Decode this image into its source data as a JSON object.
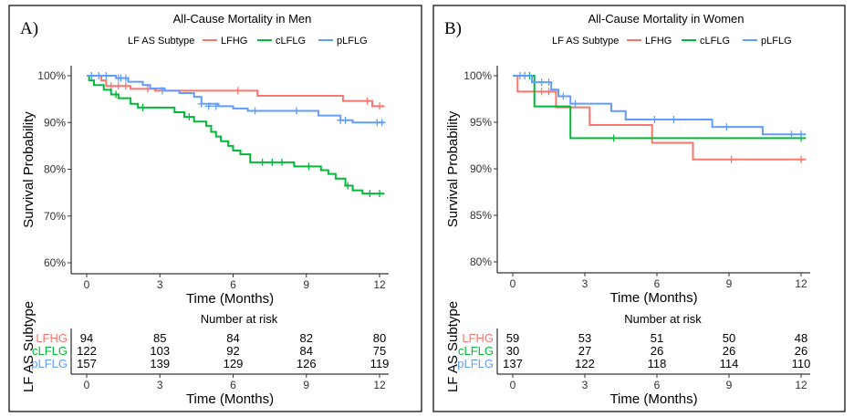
{
  "chart_data": [
    {
      "type": "line",
      "panel": "A)",
      "title": "All-Cause Mortality in Men",
      "legend_title": "LF AS Subtype",
      "xlabel": "Time (Months)",
      "ylabel": "Survival Probability",
      "x_ticks": [
        0,
        3,
        6,
        9,
        12
      ],
      "y_ticks": [
        0.6,
        0.7,
        0.8,
        0.9,
        1.0
      ],
      "y_tick_labels": [
        "60%",
        "70%",
        "80%",
        "90%",
        "100%"
      ],
      "xlim": [
        0,
        12.3
      ],
      "ylim": [
        0.59,
        1.005
      ],
      "legend_position": "top",
      "series": [
        {
          "name": "LFHG",
          "color": "#F8766D",
          "steps": [
            [
              0,
              1.0
            ],
            [
              0.6,
              0.99
            ],
            [
              0.8,
              0.978
            ],
            [
              1.8,
              0.972
            ],
            [
              2.8,
              0.968
            ],
            [
              7,
              0.957
            ],
            [
              10.5,
              0.946
            ],
            [
              11.7,
              0.935
            ],
            [
              12.2,
              0.935
            ]
          ],
          "censors": [
            [
              1.0,
              0.978
            ],
            [
              1.3,
              0.978
            ],
            [
              1.6,
              0.978
            ],
            [
              2.5,
              0.972
            ],
            [
              6.2,
              0.968
            ],
            [
              11.5,
              0.946
            ],
            [
              12.0,
              0.935
            ]
          ]
        },
        {
          "name": "cLFLG",
          "color": "#00BA38",
          "steps": [
            [
              0,
              1.0
            ],
            [
              0.1,
              0.99
            ],
            [
              0.3,
              0.98
            ],
            [
              0.7,
              0.97
            ],
            [
              1,
              0.96
            ],
            [
              1.3,
              0.952
            ],
            [
              1.8,
              0.94
            ],
            [
              2.1,
              0.932
            ],
            [
              3.6,
              0.922
            ],
            [
              4,
              0.912
            ],
            [
              4.4,
              0.902
            ],
            [
              4.9,
              0.893
            ],
            [
              5.1,
              0.88
            ],
            [
              5.3,
              0.87
            ],
            [
              5.5,
              0.86
            ],
            [
              5.8,
              0.85
            ],
            [
              6,
              0.84
            ],
            [
              6.3,
              0.832
            ],
            [
              6.7,
              0.815
            ],
            [
              8.5,
              0.806
            ],
            [
              9.6,
              0.798
            ],
            [
              9.9,
              0.79
            ],
            [
              10.2,
              0.78
            ],
            [
              10.6,
              0.765
            ],
            [
              10.9,
              0.755
            ],
            [
              11.3,
              0.748
            ],
            [
              12.2,
              0.748
            ]
          ],
          "censors": [
            [
              1.2,
              0.96
            ],
            [
              2.3,
              0.932
            ],
            [
              4.2,
              0.912
            ],
            [
              7.2,
              0.815
            ],
            [
              7.6,
              0.815
            ],
            [
              8,
              0.815
            ],
            [
              9.1,
              0.806
            ],
            [
              10.7,
              0.765
            ],
            [
              11.6,
              0.748
            ],
            [
              12.0,
              0.748
            ]
          ]
        },
        {
          "name": "pLFLG",
          "color": "#619CFF",
          "steps": [
            [
              0,
              1.0
            ],
            [
              1.2,
              0.995
            ],
            [
              1.7,
              0.987
            ],
            [
              2.3,
              0.98
            ],
            [
              2.6,
              0.973
            ],
            [
              3.2,
              0.968
            ],
            [
              3.8,
              0.963
            ],
            [
              4.4,
              0.955
            ],
            [
              4.7,
              0.94
            ],
            [
              5.4,
              0.935
            ],
            [
              6,
              0.93
            ],
            [
              6.6,
              0.925
            ],
            [
              9.5,
              0.915
            ],
            [
              10.4,
              0.905
            ],
            [
              10.9,
              0.9
            ],
            [
              12.2,
              0.9
            ]
          ],
          "censors": [
            [
              0.2,
              1.0
            ],
            [
              0.5,
              1.0
            ],
            [
              0.8,
              1.0
            ],
            [
              1.3,
              0.995
            ],
            [
              1.4,
              0.995
            ],
            [
              1.6,
              0.995
            ],
            [
              3.1,
              0.968
            ],
            [
              4.7,
              0.94
            ],
            [
              5.0,
              0.935
            ],
            [
              5.3,
              0.935
            ],
            [
              6.9,
              0.925
            ],
            [
              8.6,
              0.925
            ],
            [
              10.4,
              0.905
            ],
            [
              10.6,
              0.905
            ],
            [
              11.9,
              0.9
            ],
            [
              12.1,
              0.9
            ]
          ]
        }
      ],
      "risk_table": {
        "title": "Number at risk",
        "ylabel": "LF AS Subtype",
        "xlabel": "Time (Months)",
        "rows": [
          {
            "name": "LFHG",
            "values": [
              94,
              85,
              84,
              82,
              80
            ]
          },
          {
            "name": "cLFLG",
            "values": [
              122,
              103,
              92,
              84,
              75
            ]
          },
          {
            "name": "pLFLG",
            "values": [
              157,
              139,
              129,
              126,
              119
            ]
          }
        ]
      }
    },
    {
      "type": "line",
      "panel": "B)",
      "title": "All-Cause Mortality in Women",
      "legend_title": "LF AS Subtype",
      "xlabel": "Time (Months)",
      "ylabel": "Survival Probability",
      "x_ticks": [
        0,
        3,
        6,
        9,
        12
      ],
      "y_ticks": [
        0.8,
        0.85,
        0.9,
        0.95,
        1.0
      ],
      "y_tick_labels": [
        "80%",
        "85%",
        "90%",
        "95%",
        "100%"
      ],
      "xlim": [
        0,
        12.3
      ],
      "ylim": [
        0.795,
        1.002
      ],
      "legend_position": "top",
      "series": [
        {
          "name": "LFHG",
          "color": "#F8766D",
          "steps": [
            [
              0,
              1.0
            ],
            [
              0.2,
              0.983
            ],
            [
              1.8,
              0.966
            ],
            [
              3.2,
              0.947
            ],
            [
              5.8,
              0.928
            ],
            [
              7.5,
              0.91
            ],
            [
              12.2,
              0.91
            ]
          ],
          "censors": [
            [
              1.2,
              0.983
            ],
            [
              1.5,
              0.983
            ],
            [
              9.1,
              0.91
            ],
            [
              12.0,
              0.91
            ]
          ]
        },
        {
          "name": "cLFLG",
          "color": "#00BA38",
          "steps": [
            [
              0,
              1.0
            ],
            [
              0.9,
              0.967
            ],
            [
              2.4,
              0.933
            ],
            [
              12.2,
              0.933
            ]
          ],
          "censors": [
            [
              0.7,
              1.0
            ],
            [
              4.2,
              0.933
            ],
            [
              12.0,
              0.933
            ]
          ]
        },
        {
          "name": "pLFLG",
          "color": "#619CFF",
          "steps": [
            [
              0,
              1.0
            ],
            [
              0.8,
              0.993
            ],
            [
              1.6,
              0.985
            ],
            [
              1.9,
              0.978
            ],
            [
              2.4,
              0.97
            ],
            [
              4.1,
              0.962
            ],
            [
              4.7,
              0.953
            ],
            [
              8.3,
              0.945
            ],
            [
              10.4,
              0.937
            ],
            [
              12.2,
              0.937
            ]
          ],
          "censors": [
            [
              0.3,
              1.0
            ],
            [
              0.5,
              1.0
            ],
            [
              1.2,
              0.993
            ],
            [
              1.5,
              0.993
            ],
            [
              2.1,
              0.978
            ],
            [
              2.6,
              0.97
            ],
            [
              5.9,
              0.953
            ],
            [
              6.7,
              0.953
            ],
            [
              8.9,
              0.945
            ],
            [
              11.6,
              0.937
            ],
            [
              12.0,
              0.937
            ]
          ]
        }
      ],
      "risk_table": {
        "title": "Number at risk",
        "ylabel": "LF AS Subtype",
        "xlabel": "Time (Months)",
        "rows": [
          {
            "name": "LFHG",
            "values": [
              59,
              53,
              51,
              50,
              48
            ]
          },
          {
            "name": "cLFLG",
            "values": [
              30,
              27,
              26,
              26,
              26
            ]
          },
          {
            "name": "pLFLG",
            "values": [
              137,
              122,
              118,
              114,
              110
            ]
          }
        ]
      }
    }
  ]
}
